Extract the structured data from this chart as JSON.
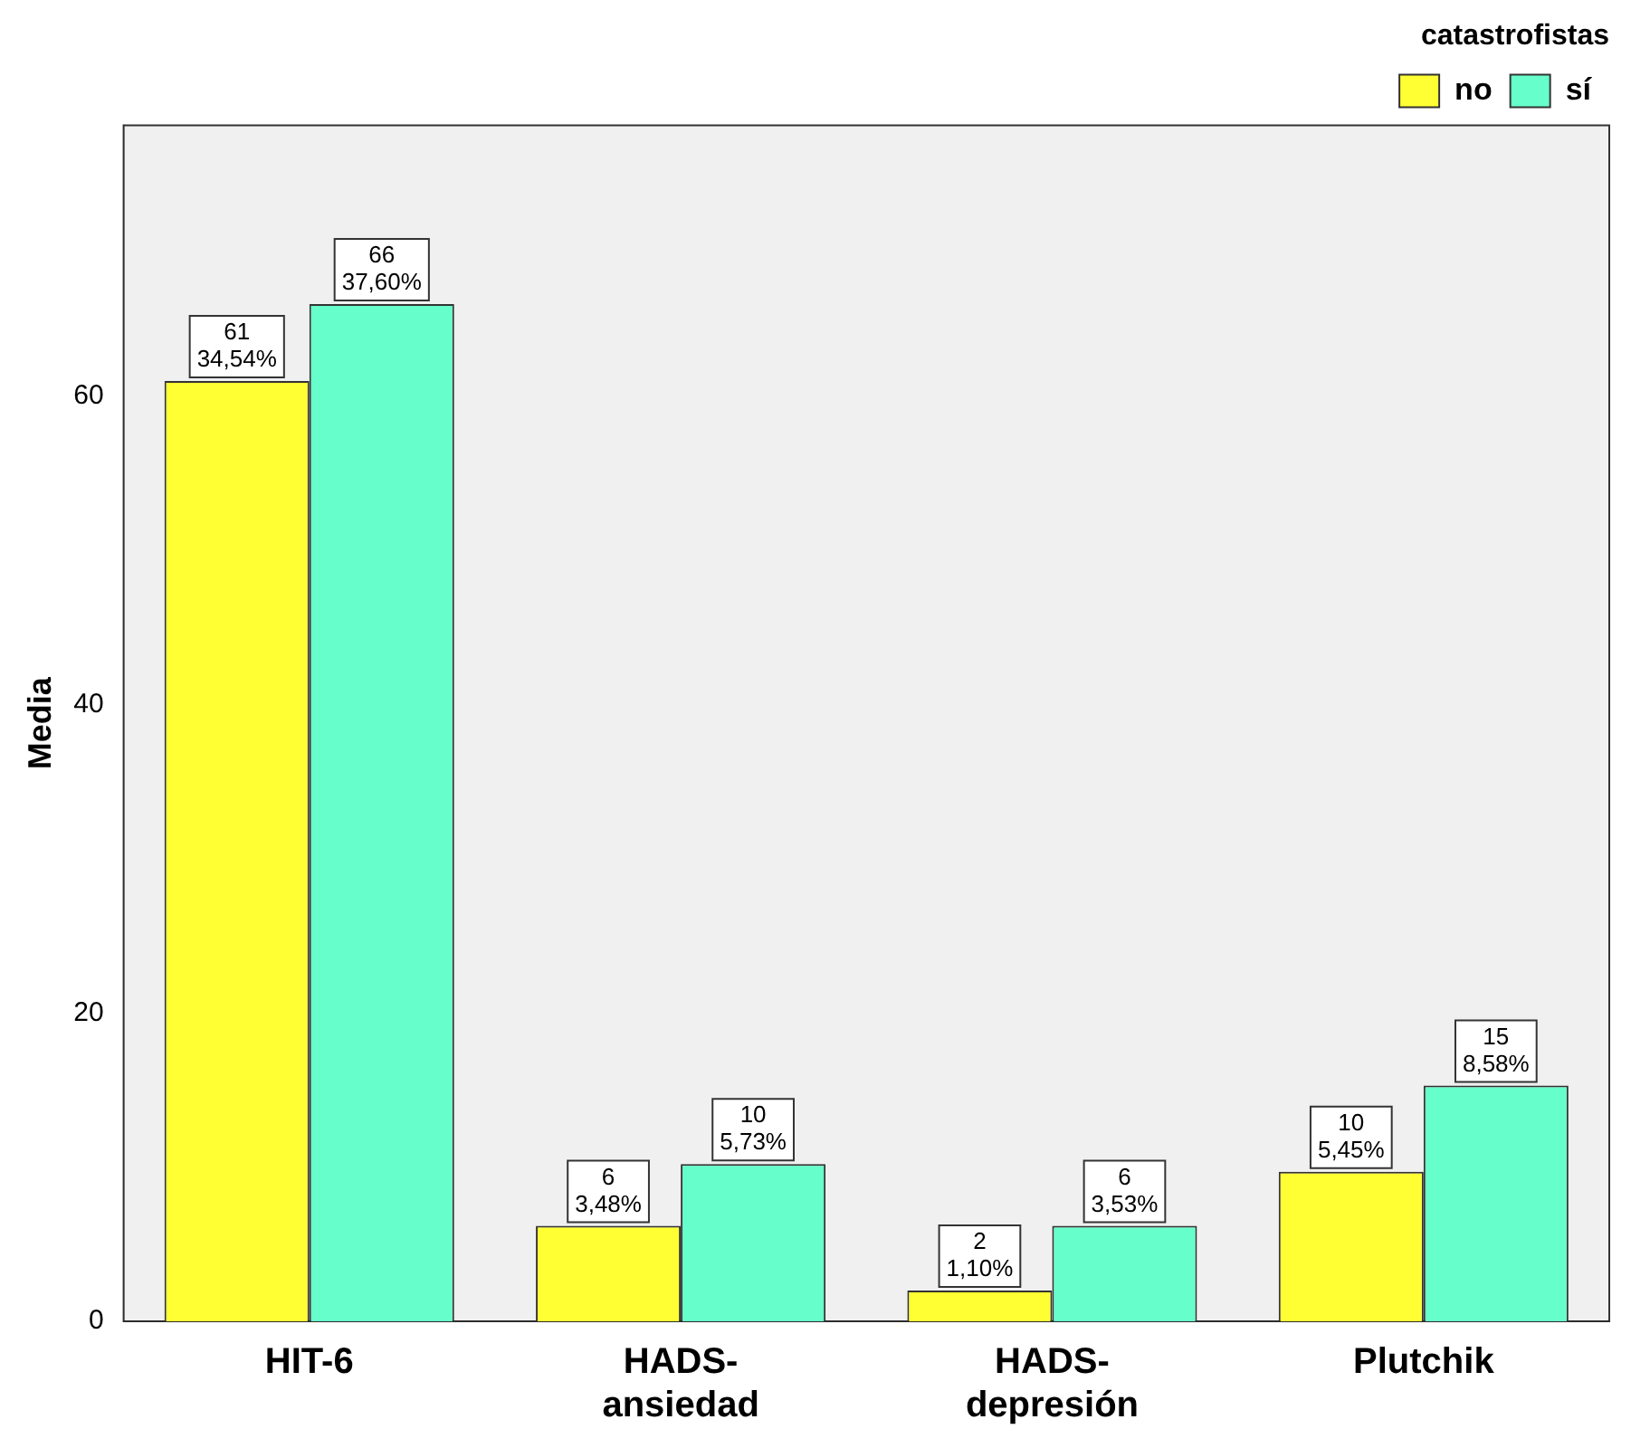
{
  "chart_data": {
    "type": "bar",
    "ylabel": "Media",
    "legend_title": "catastrofistas",
    "categories": [
      "HIT-6",
      "HADS-ansiedad",
      "HADS-depresión",
      "Plutchik"
    ],
    "series": [
      {
        "name": "no",
        "color": "#ffff33",
        "values": [
          61,
          6.2,
          2,
          9.7
        ],
        "value_labels": [
          "61\n34,54%",
          "6\n3,48%",
          "2\n1,10%",
          "10\n5,45%"
        ]
      },
      {
        "name": "sí",
        "color": "#66ffcc",
        "values": [
          66,
          10.2,
          6.2,
          15.3
        ],
        "value_labels": [
          "66\n37,60%",
          "10\n5,73%",
          "6\n3,53%",
          "15\n8,58%"
        ]
      }
    ],
    "ylim": [
      0,
      77.6
    ],
    "yticks": [
      0,
      20,
      40,
      60
    ],
    "grid": false,
    "legend": "top right"
  }
}
